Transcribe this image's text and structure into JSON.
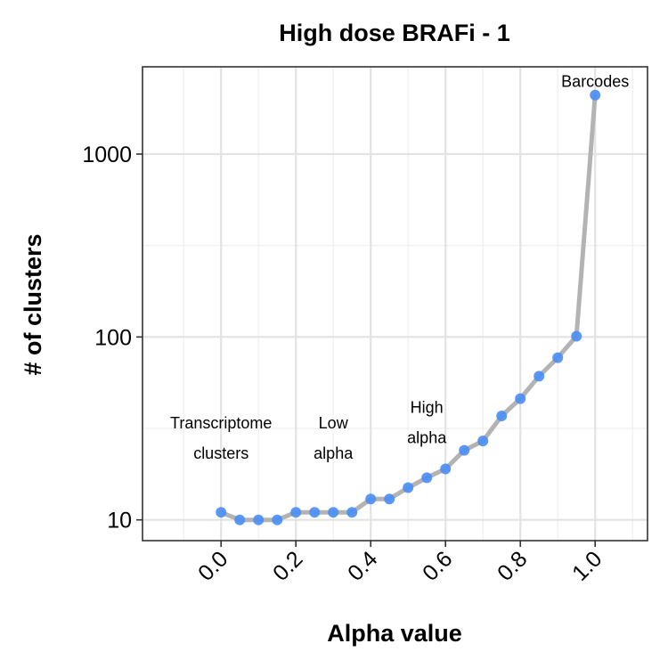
{
  "chart_data": {
    "type": "line",
    "title": "High dose BRAFi - 1",
    "xlabel": "Alpha value",
    "ylabel": "# of clusters",
    "y_scale": "log10",
    "xlim": [
      -0.21,
      1.14
    ],
    "ylim": [
      7.7,
      3000
    ],
    "x_ticks": [
      0.0,
      0.2,
      0.4,
      0.6,
      0.8,
      1.0
    ],
    "x_tick_labels": [
      "0.0",
      "0.2",
      "0.4",
      "0.6",
      "0.8",
      "1.0"
    ],
    "y_ticks": [
      10,
      100,
      1000
    ],
    "y_tick_labels": [
      "10",
      "100",
      "1000"
    ],
    "grid": true,
    "line_color": "#b3b3b3",
    "point_color": "#4d8ff5",
    "series": [
      {
        "x": [
          0.0,
          0.05,
          0.1,
          0.15,
          0.2,
          0.25,
          0.3,
          0.35,
          0.4,
          0.45,
          0.5,
          0.55,
          0.6,
          0.65,
          0.7,
          0.75,
          0.8,
          0.85,
          0.9,
          0.95,
          1.0
        ],
        "values": [
          11,
          10,
          10,
          10,
          11,
          11,
          11,
          11,
          13,
          13,
          15,
          17,
          19,
          24,
          27,
          37,
          46,
          61,
          77,
          101,
          2100
        ]
      }
    ],
    "annotations": [
      {
        "lines": [
          "Transcriptome",
          "clusters"
        ],
        "x": 0.0,
        "y": 28
      },
      {
        "lines": [
          "Low",
          "alpha"
        ],
        "x": 0.3,
        "y": 28
      },
      {
        "lines": [
          "High",
          "alpha"
        ],
        "x": 0.55,
        "y": 34
      },
      {
        "lines": [
          "Barcodes"
        ],
        "x": 1.0,
        "y": 2500
      }
    ]
  }
}
